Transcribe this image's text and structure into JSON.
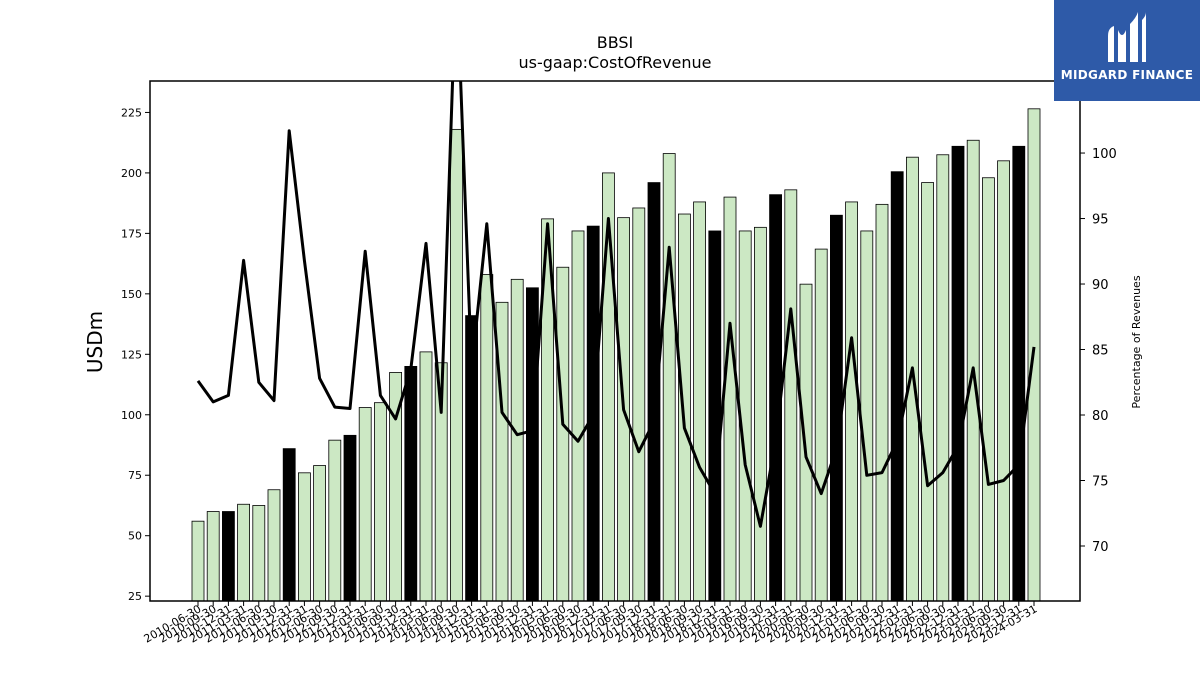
{
  "chart_data": {
    "type": "bar",
    "title": "BBSI",
    "subtitle": "us-gaap:CostOfRevenue",
    "ylabel": "USDm",
    "y2label": "Percentage of Revenues",
    "ylim": [
      23,
      238
    ],
    "y2lim": [
      65.8,
      105.5
    ],
    "yticks": [
      25,
      50,
      75,
      100,
      125,
      150,
      175,
      200,
      225
    ],
    "y2ticks": [
      70,
      75,
      80,
      85,
      90,
      95,
      100
    ],
    "colors": {
      "bar_default": "#cce8c4",
      "bar_q4": "#000000",
      "line": "#000000"
    },
    "categories": [
      "2010-06-30",
      "2010-09-30",
      "2010-12-31",
      "2011-03-31",
      "2011-06-30",
      "2011-09-30",
      "2011-12-31",
      "2012-03-31",
      "2012-06-30",
      "2012-09-30",
      "2012-12-31",
      "2013-03-31",
      "2013-06-30",
      "2013-09-30",
      "2013-12-31",
      "2014-03-31",
      "2014-06-30",
      "2014-09-30",
      "2014-12-31",
      "2015-03-31",
      "2015-06-30",
      "2015-09-30",
      "2015-12-31",
      "2016-03-31",
      "2016-06-30",
      "2016-09-30",
      "2016-12-31",
      "2017-03-31",
      "2017-06-30",
      "2017-09-30",
      "2017-12-31",
      "2018-03-31",
      "2018-06-30",
      "2018-09-30",
      "2018-12-31",
      "2019-03-31",
      "2019-06-30",
      "2019-09-30",
      "2019-12-31",
      "2020-03-31",
      "2020-06-30",
      "2020-09-30",
      "2020-12-31",
      "2021-03-31",
      "2021-06-30",
      "2021-09-30",
      "2021-12-31",
      "2022-03-31",
      "2022-06-30",
      "2022-09-30",
      "2022-12-31",
      "2023-03-31",
      "2023-06-30",
      "2023-09-30",
      "2023-12-31",
      "2024-03-31"
    ],
    "values": [
      56,
      60,
      60,
      63,
      62.5,
      69,
      86,
      76,
      79,
      89.5,
      91.5,
      103,
      105,
      117.5,
      120,
      126,
      121.5,
      218,
      141,
      158,
      146.5,
      156,
      152.5,
      181,
      161,
      176,
      178,
      200,
      181.5,
      185.5,
      196,
      208,
      183,
      188,
      176,
      190,
      176,
      177.5,
      191,
      193,
      154,
      168.5,
      182.5,
      188,
      176,
      187,
      200.5,
      206.5,
      196,
      207.5,
      211,
      213.5,
      198,
      205,
      211,
      226.5
    ],
    "highlight": [
      false,
      false,
      true,
      false,
      false,
      false,
      true,
      false,
      false,
      false,
      true,
      false,
      false,
      false,
      true,
      false,
      false,
      false,
      true,
      false,
      false,
      false,
      true,
      false,
      false,
      false,
      true,
      false,
      false,
      false,
      true,
      false,
      false,
      false,
      true,
      false,
      false,
      false,
      true,
      false,
      false,
      false,
      true,
      false,
      false,
      false,
      true,
      false,
      false,
      false,
      true,
      false,
      false,
      false,
      true,
      false
    ],
    "line_series": {
      "name": "Percentage of Revenues",
      "values": [
        82.6,
        81.0,
        81.5,
        91.8,
        82.5,
        81.1,
        101.7,
        91.8,
        82.8,
        80.6,
        80.5,
        92.5,
        81.5,
        79.7,
        83.5,
        93.1,
        80.2,
        114.0,
        83.5,
        94.6,
        80.2,
        78.5,
        78.8,
        94.6,
        79.3,
        78.0,
        80.0,
        95.0,
        80.4,
        77.2,
        79.5,
        92.8,
        79.0,
        76.0,
        74.0,
        87.0,
        76.2,
        71.5,
        78.0,
        88.1,
        76.8,
        74.0,
        77.4,
        85.9,
        75.4,
        75.6,
        78.0,
        83.6,
        74.6,
        75.6,
        77.6,
        83.6,
        74.7,
        75.0,
        76.2,
        85.2
      ]
    }
  },
  "logo": {
    "text": "MIDGARD FINANCE"
  }
}
